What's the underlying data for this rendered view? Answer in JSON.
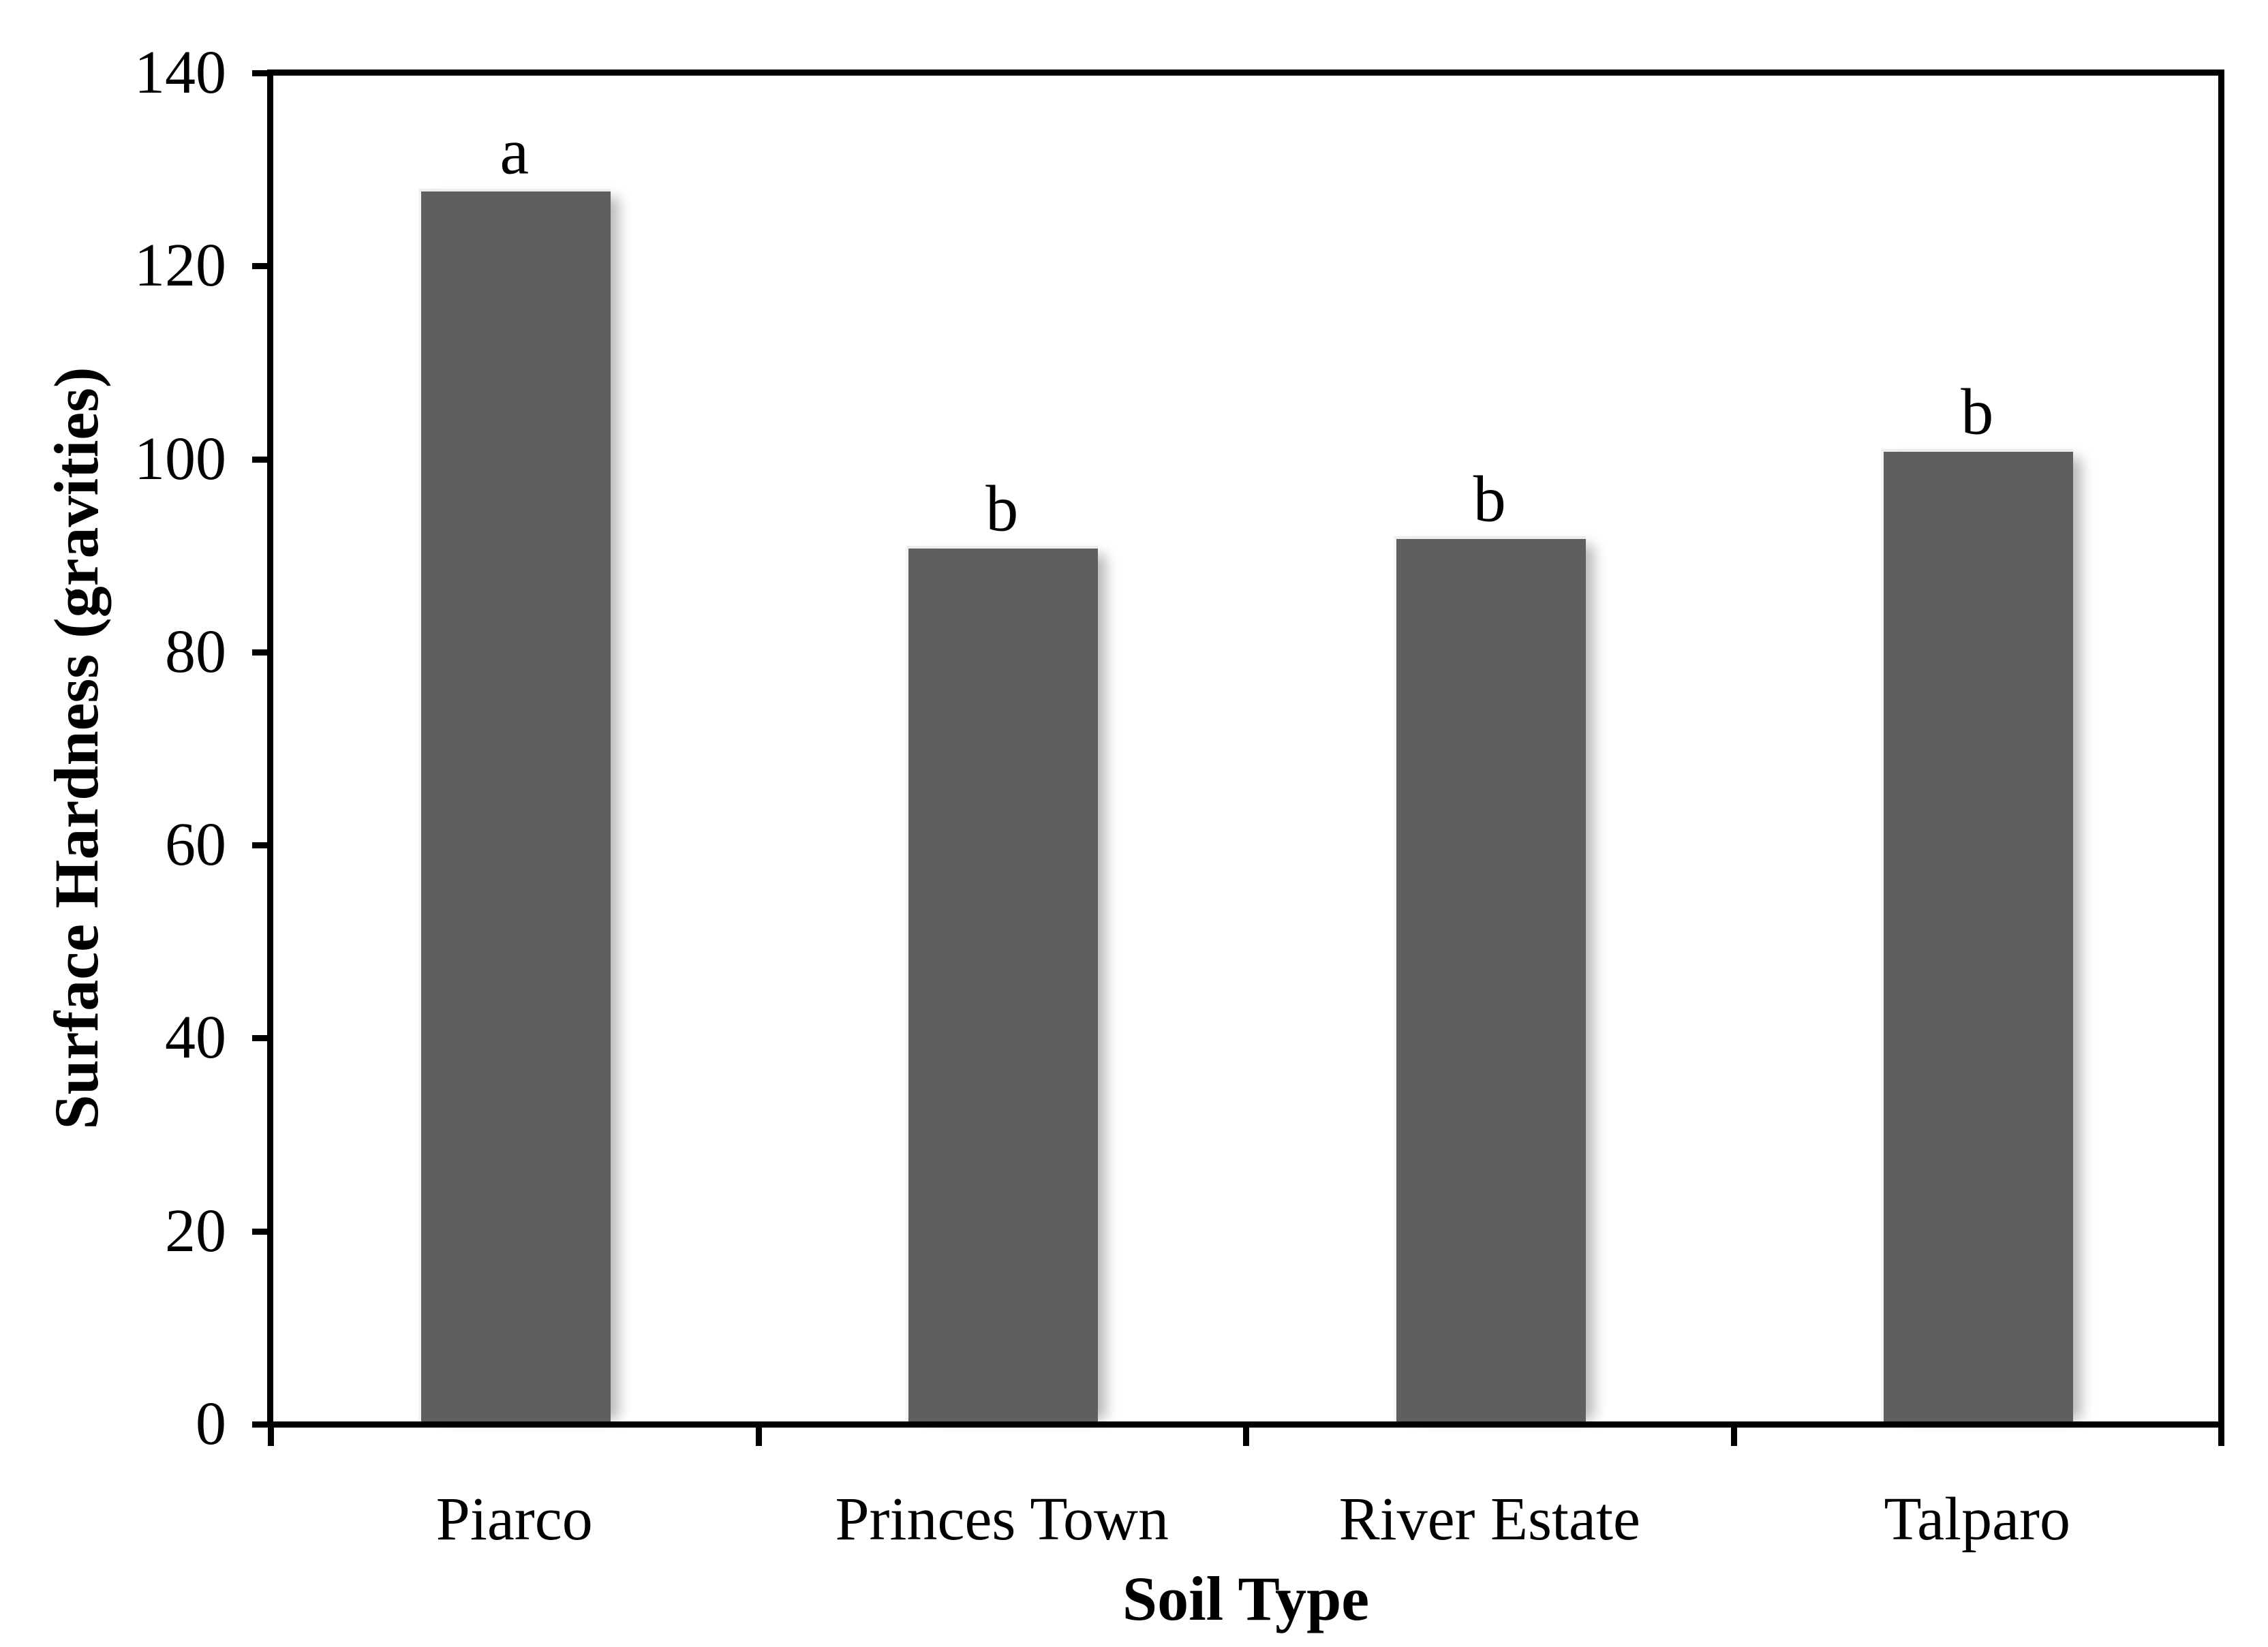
{
  "chart_data": {
    "type": "bar",
    "title": "",
    "categories": [
      "Piarco",
      "Princes Town",
      "River Estate",
      "Talparo"
    ],
    "values": [
      128,
      91,
      92,
      101
    ],
    "significance_letters": [
      "a",
      "b",
      "b",
      "b"
    ],
    "xlabel": "Soil Type",
    "ylabel": "Surface Hardness (gravities)",
    "ylim": [
      0,
      140
    ],
    "yticks": [
      0,
      20,
      40,
      60,
      80,
      100,
      120,
      140
    ],
    "grid": false,
    "legend": false,
    "bar_color": "#5f5f5f",
    "axis_color": "#000000",
    "background_color": "#ffffff"
  }
}
